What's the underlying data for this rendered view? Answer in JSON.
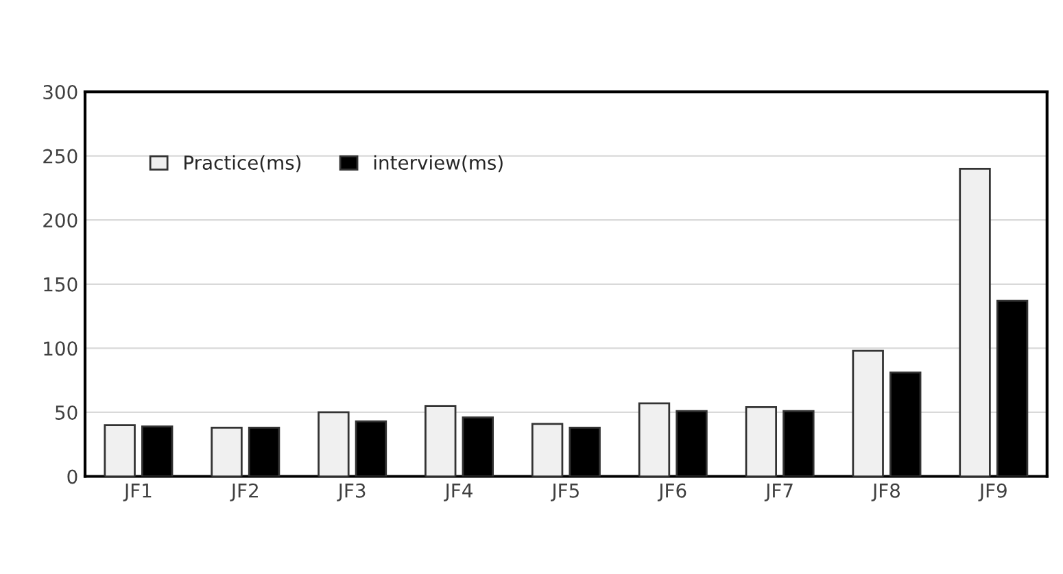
{
  "chart_data": {
    "type": "bar",
    "categories": [
      "JF1",
      "JF2",
      "JF3",
      "JF4",
      "JF5",
      "JF6",
      "JF7",
      "JF8",
      "JF9"
    ],
    "series": [
      {
        "name": "Practice(ms)",
        "color": "#f0f0f0",
        "values": [
          40,
          38,
          50,
          55,
          41,
          57,
          54,
          98,
          240
        ]
      },
      {
        "name": "interview(ms)",
        "color": "#000000",
        "values": [
          39,
          38,
          43,
          46,
          38,
          51,
          51,
          81,
          137
        ]
      }
    ],
    "ylim": [
      0,
      300
    ],
    "yticks": [
      0,
      50,
      100,
      150,
      200,
      250,
      300
    ],
    "grid": "y",
    "legend": "top left"
  }
}
